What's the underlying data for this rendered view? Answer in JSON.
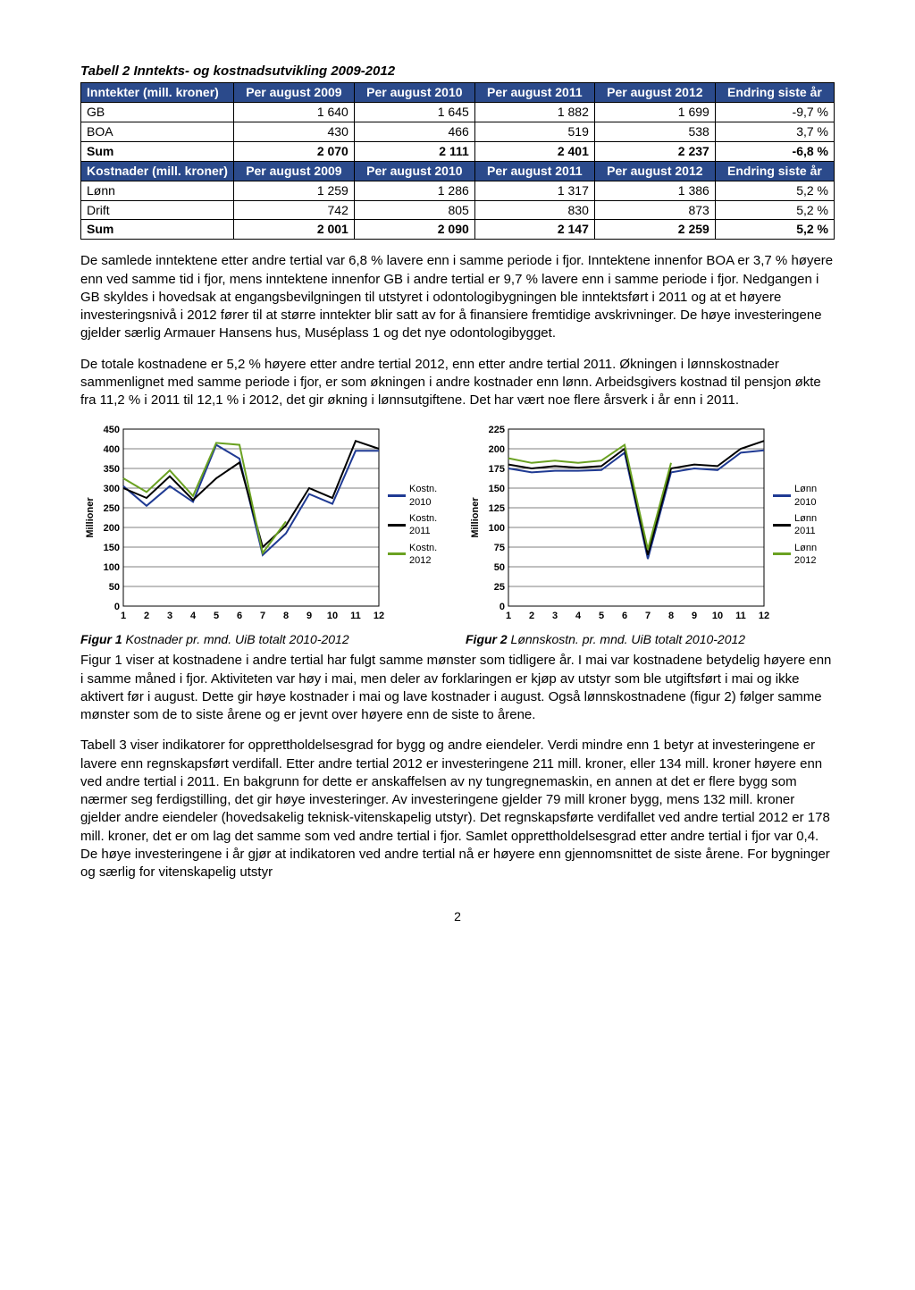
{
  "pageNumber": "2",
  "table2": {
    "title": "Tabell 2 Inntekts- og kostnadsutvikling 2009-2012",
    "header1": [
      "Inntekter (mill. kroner)",
      "Per august 2009",
      "Per august 2010",
      "Per august 2011",
      "Per august 2012",
      "Endring siste år"
    ],
    "rows1": [
      {
        "label": "GB",
        "c": [
          "1 640",
          "1 645",
          "1 882",
          "1 699",
          "-9,7 %"
        ]
      },
      {
        "label": "BOA",
        "c": [
          "430",
          "466",
          "519",
          "538",
          "3,7 %"
        ]
      }
    ],
    "sum1": {
      "label": "Sum",
      "c": [
        "2 070",
        "2 111",
        "2 401",
        "2 237",
        "-6,8 %"
      ]
    },
    "header2": [
      "Kostnader (mill. kroner)",
      "Per august 2009",
      "Per august 2010",
      "Per august 2011",
      "Per august 2012",
      "Endring siste år"
    ],
    "rows2": [
      {
        "label": "Lønn",
        "c": [
          "1 259",
          "1 286",
          "1 317",
          "1 386",
          "5,2 %"
        ]
      },
      {
        "label": "Drift",
        "c": [
          "742",
          "805",
          "830",
          "873",
          "5,2 %"
        ]
      }
    ],
    "sum2": {
      "label": "Sum",
      "c": [
        "2 001",
        "2 090",
        "2 147",
        "2 259",
        "5,2 %"
      ]
    }
  },
  "para1": "De samlede inntektene etter andre tertial var 6,8 % lavere enn i samme periode i fjor. Inntektene innenfor BOA er 3,7 % høyere enn ved samme tid i fjor, mens inntektene innenfor GB i andre tertial er 9,7 % lavere enn i samme periode i fjor. Nedgangen i GB skyldes i hovedsak at engangsbevilgningen til utstyret i odontologibygningen ble inntektsført i 2011 og at et høyere investeringsnivå i 2012 fører til at større inntekter blir satt av for å finansiere fremtidige avskrivninger. De høye investeringene gjelder særlig Armauer Hansens hus, Muséplass 1 og det nye odontologibygget.",
  "para2": "De totale kostnadene er 5,2 % høyere etter andre tertial 2012, enn etter andre tertial 2011. Økningen i lønnskostnader sammenlignet med samme periode i fjor, er som økningen i andre kostnader enn lønn. Arbeidsgivers kostnad til pensjon økte fra 11,2 % i 2011 til 12,1 % i 2012, det gir økning i lønnsutgiftene. Det har vært noe flere årsverk i år enn i 2011.",
  "chart1": {
    "type": "line",
    "title": "",
    "x": [
      1,
      2,
      3,
      4,
      5,
      6,
      7,
      8,
      9,
      10,
      11,
      12
    ],
    "ylim": [
      0,
      450
    ],
    "ytick_step": 50,
    "series": [
      {
        "name": "Kostn. 2010",
        "color": "#1f3a93",
        "y": [
          305,
          255,
          305,
          265,
          410,
          375,
          130,
          185,
          285,
          260,
          395,
          395
        ]
      },
      {
        "name": "Kostn. 2011",
        "color": "#000000",
        "y": [
          300,
          275,
          330,
          270,
          325,
          365,
          150,
          205,
          300,
          275,
          420,
          400
        ]
      },
      {
        "name": "Kostn. 2012",
        "color": "#6aa121",
        "y": [
          325,
          290,
          345,
          280,
          415,
          410,
          135,
          215,
          null,
          null,
          null,
          null
        ]
      }
    ],
    "ylabel": "Millioner",
    "caption_bold": "Figur 1",
    "caption_rest": " Kostnader pr. mnd. UiB totalt 2010-2012"
  },
  "chart2": {
    "type": "line",
    "x": [
      1,
      2,
      3,
      4,
      5,
      6,
      7,
      8,
      9,
      10,
      11,
      12
    ],
    "ylim": [
      0,
      225
    ],
    "ytick_step": 25,
    "series": [
      {
        "name": "Lønn 2010",
        "color": "#1f3a93",
        "y": [
          175,
          170,
          172,
          172,
          173,
          195,
          60,
          170,
          175,
          173,
          195,
          198
        ]
      },
      {
        "name": "Lønn 2011",
        "color": "#000000",
        "y": [
          180,
          175,
          178,
          176,
          178,
          200,
          65,
          175,
          180,
          178,
          200,
          210
        ]
      },
      {
        "name": "Lønn 2012",
        "color": "#6aa121",
        "y": [
          188,
          182,
          185,
          182,
          185,
          205,
          72,
          182,
          null,
          null,
          null,
          null
        ]
      }
    ],
    "ylabel": "Millioner",
    "caption_bold": "Figur 2",
    "caption_rest": " Lønnskostn. pr. mnd. UiB totalt 2010-2012"
  },
  "para3": "Figur 1 viser at kostnadene i andre tertial har fulgt samme mønster som tidligere år. I mai var kostnadene betydelig høyere enn i samme måned i fjor. Aktiviteten var høy i mai, men deler av forklaringen er kjøp av utstyr som ble utgiftsført i mai og ikke aktivert før i august. Dette gir høye kostnader i mai og lave kostnader i august. Også lønnskostnadene (figur 2) følger samme mønster som de to siste årene og er jevnt over høyere enn de siste to årene.",
  "para4": "Tabell 3 viser indikatorer for opprettholdelsesgrad for bygg og andre eiendeler. Verdi mindre enn 1 betyr at investeringene er lavere enn regnskapsført verdifall. Etter andre tertial 2012 er investeringene 211 mill. kroner, eller 134 mill. kroner høyere enn ved andre tertial i 2011. En bakgrunn for dette er anskaffelsen av ny tungregnemaskin, en annen at det er flere bygg som nærmer seg ferdigstilling, det gir høye investeringer. Av investeringene gjelder 79 mill kroner bygg, mens 132 mill. kroner gjelder andre eiendeler (hovedsakelig teknisk-vitenskapelig utstyr). Det regnskapsførte verdifallet ved andre tertial 2012 er 178 mill. kroner, det er om lag det samme som ved andre tertial i fjor. Samlet opprettholdelsesgrad etter andre tertial i fjor var 0,4. De høye investeringene i år gjør at indikatoren ved andre tertial nå er høyere enn gjennomsnittet de siste årene. For bygninger og særlig for vitenskapelig utstyr",
  "styles": {
    "header_bg": "#2b4a8b",
    "header_fg": "#ffffff",
    "border": "#000000",
    "grid_color": "#000000",
    "page_bg": "#ffffff"
  }
}
